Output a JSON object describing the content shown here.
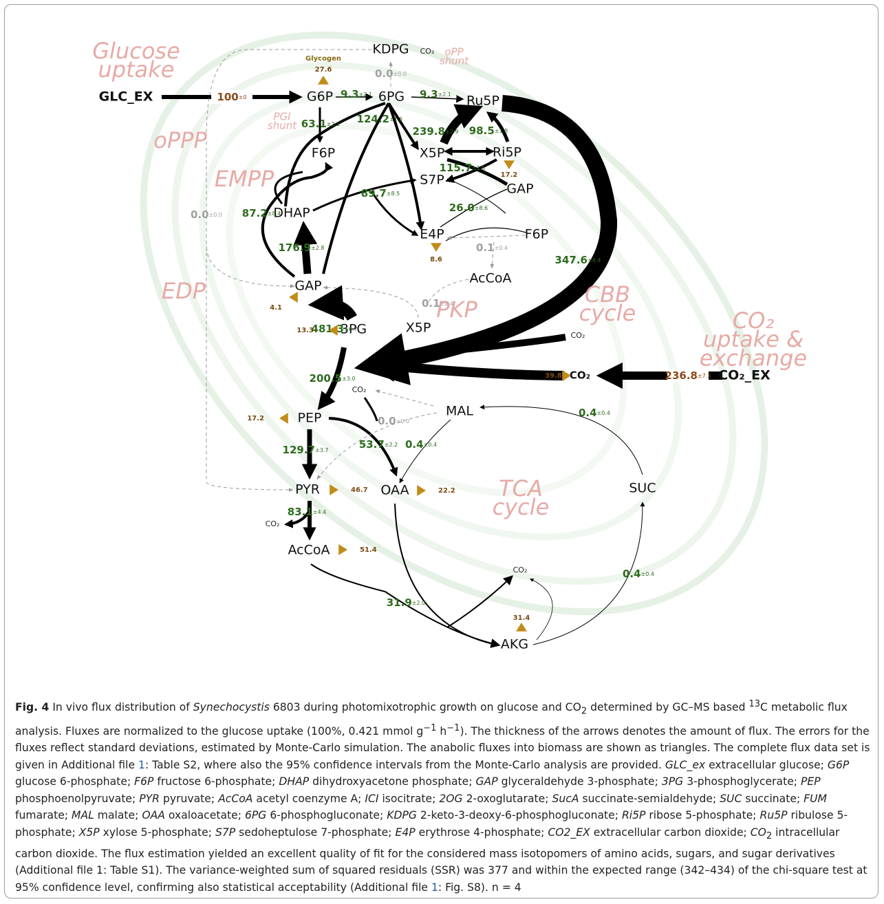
{
  "pathway_labels": [
    {
      "lines": [
        "Glucose",
        "uptake"
      ]
    },
    {
      "lines": [
        "oPPP"
      ]
    },
    {
      "lines": [
        "EMPP"
      ]
    },
    {
      "lines": [
        "EDP"
      ]
    },
    {
      "lines": [
        "PKP"
      ]
    },
    {
      "lines": [
        "CBB",
        "cycle"
      ]
    },
    {
      "lines": [
        "CO₂",
        "uptake &",
        "exchange"
      ]
    },
    {
      "lines": [
        "TCA",
        "cycle"
      ]
    },
    {
      "lines": [
        "oPP",
        "shunt"
      ]
    },
    {
      "lines": [
        "PGI",
        "shunt"
      ]
    }
  ],
  "nodes": [
    {
      "label": "GLC_EX"
    },
    {
      "label": "KDPG"
    },
    {
      "label": "G6P"
    },
    {
      "label": "6PG"
    },
    {
      "label": "Ru5P"
    },
    {
      "label": "F6P"
    },
    {
      "label": "X5P"
    },
    {
      "label": "Ri5P"
    },
    {
      "label": "S7P"
    },
    {
      "label": "GAP"
    },
    {
      "label": "DHAP"
    },
    {
      "label": "E4P"
    },
    {
      "label": "F6P"
    },
    {
      "label": "AcCoA"
    },
    {
      "label": "GAP"
    },
    {
      "label": "X5P"
    },
    {
      "label": "3PG"
    },
    {
      "label": "PEP"
    },
    {
      "label": "MAL"
    },
    {
      "label": "PYR"
    },
    {
      "label": "OAA"
    },
    {
      "label": "SUC"
    },
    {
      "label": "AcCoA"
    },
    {
      "label": "AKG"
    },
    {
      "label": "CO₂_EX"
    },
    {
      "label": "CO₂"
    }
  ],
  "co2_labels": [
    "CO₂",
    "CO₂",
    "CO₂",
    "CO₂",
    "CO₂"
  ],
  "glycogen_label": "Glycogen",
  "fluxes": [
    {
      "value": "100",
      "error": "±0",
      "color": "#8b4a1a"
    },
    {
      "value": "9.3",
      "error": "±2.1",
      "color": "#2e6b1e"
    },
    {
      "value": "9.3",
      "error": "±2.1",
      "color": "#2e6b1e"
    },
    {
      "value": "0.0",
      "error": "±0.0",
      "color": "#a0a0a0"
    },
    {
      "value": "63.1",
      "error": "±2.1",
      "color": "#2e6b1e"
    },
    {
      "value": "124.2",
      "error": "±1.5",
      "color": "#2e6b1e"
    },
    {
      "value": "239.8",
      "error": "±2.9",
      "color": "#2e6b1e"
    },
    {
      "value": "98.5",
      "error": "±1.8",
      "color": "#2e6b1e"
    },
    {
      "value": "115.7",
      "error": "±1.5",
      "color": "#2e6b1e"
    },
    {
      "value": "89.7",
      "error": "±8.5",
      "color": "#2e6b1e"
    },
    {
      "value": "26.0",
      "error": "±8.6",
      "color": "#2e6b1e"
    },
    {
      "value": "87.2",
      "error": "±8.4",
      "color": "#2e6b1e"
    },
    {
      "value": "0.0",
      "error": "±0.0",
      "color": "#a0a0a0"
    },
    {
      "value": "0.1",
      "error": "±0.4",
      "color": "#a0a0a0"
    },
    {
      "value": "176.9",
      "error": "±2.8",
      "color": "#2e6b1e"
    },
    {
      "value": "347.6",
      "error": "±4.4",
      "color": "#2e6b1e"
    },
    {
      "value": "0.1",
      "error": "±0.4",
      "color": "#a0a0a0"
    },
    {
      "value": "481.3",
      "error": "±6.7",
      "color": "#2e6b1e"
    },
    {
      "value": "200.5",
      "error": "±3.0",
      "color": "#2e6b1e"
    },
    {
      "value": "0.0",
      "error": "±0.0",
      "color": "#a0a0a0"
    },
    {
      "value": "53.7",
      "error": "±2.2",
      "color": "#2e6b1e"
    },
    {
      "value": "0.4",
      "error": "±0.4",
      "color": "#2e6b1e"
    },
    {
      "value": "0.4",
      "error": "±0.4",
      "color": "#2e6b1e"
    },
    {
      "value": "129.7",
      "error": "±3.7",
      "color": "#2e6b1e"
    },
    {
      "value": "83.1",
      "error": "±4.4",
      "color": "#2e6b1e"
    },
    {
      "value": "236.8",
      "error": "±7.3",
      "color": "#8b4a1a"
    },
    {
      "value": "31.9",
      "error": "±2.0",
      "color": "#2e6b1e"
    },
    {
      "value": "0.4",
      "error": "±0.4",
      "color": "#2e6b1e"
    }
  ],
  "biomass": [
    {
      "value": "27.6"
    },
    {
      "value": "17.2"
    },
    {
      "value": "8.6"
    },
    {
      "value": "4.1"
    },
    {
      "value": "13.3"
    },
    {
      "value": "39.8"
    },
    {
      "value": "17.2"
    },
    {
      "value": "46.7"
    },
    {
      "value": "22.2"
    },
    {
      "value": "51.4"
    },
    {
      "value": "31.4"
    }
  ],
  "caption": [
    "Fig. 4",
    " In vivo flux distribution of ",
    "Synechocystis",
    " 6803 during photomixotrophic growth on glucose and CO",
    "2",
    " determined by GC–MS based ",
    "13",
    "C metabolic flux analysis. Fluxes are normalized to the glucose uptake (100%, 0.421 mmol g",
    "−1",
    " h",
    "−1",
    "). The thickness of the arrows denotes the amount of flux. The errors for the fluxes reflect standard deviations, estimated by Monte-Carlo simulation. The anabolic fluxes into biomass are shown as triangles. The complete flux data set is given in Additional file ",
    "1",
    ": Table S2, where also the 95% confidence intervals from the Monte-Carlo analysis are provided. ",
    "GLC_ex",
    " extracellular glucose; ",
    "G6P",
    " glucose 6-phosphate; ",
    "F6P",
    " fructose 6-phosphate; ",
    "DHAP",
    " dihydroxyacetone phosphate; ",
    "GAP",
    " glyceraldehyde 3-phosphate; ",
    "3PG",
    " 3-phosphoglycerate; ",
    "PEP",
    " phosphoenolpyruvate; ",
    "PYR",
    " pyruvate; ",
    "AcCoA",
    " acetyl coenzyme A; ",
    "ICI",
    " isocitrate; ",
    "2OG",
    " 2-oxoglutarate; ",
    "SucA",
    " succinate-semialdehyde; ",
    "SUC",
    " succinate; ",
    "FUM",
    " fumarate; ",
    "MAL",
    " malate; ",
    "OAA",
    " oxaloacetate; ",
    "6PG",
    " 6-phosphogluconate; ",
    "KDPG",
    " 2-keto-3-deoxy-6-phosphogluconate; ",
    "Ri5P",
    " ribose 5-phosphate; ",
    "Ru5P",
    " ribulose 5-phosphate; ",
    "X5P",
    " xylose 5-phosphate; ",
    "S7P",
    " sedoheptulose 7-phosphate; ",
    "E4P",
    " erythrose 4-phosphate; ",
    "CO2_EX",
    " extracellular carbon dioxide; ",
    "CO",
    "2",
    " intracellular carbon dioxide. The flux estimation yielded an excellent quality of fit for the considered mass isotopomers of amino acids, sugars, and sugar derivatives (Additional file ",
    "1",
    ": Table S1). The variance-weighted sum of squared residuals (SSR) was 377 and within the expected range (342–434) of the chi-square test at 95% confidence level, confirming also statistical acceptability (Additional file ",
    "1",
    ": Fig. S8). n = 4"
  ]
}
